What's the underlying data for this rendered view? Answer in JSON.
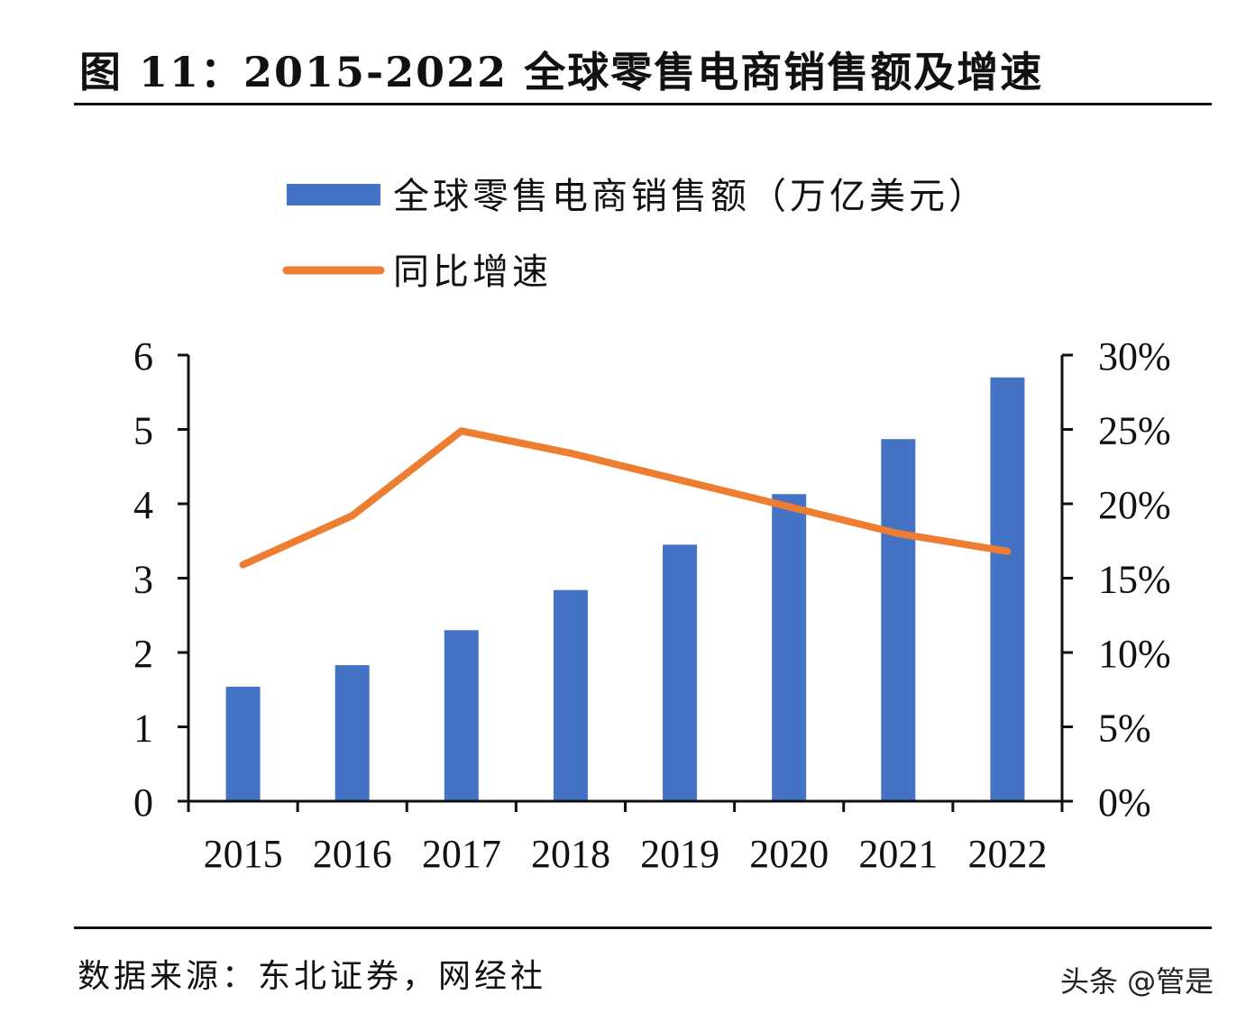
{
  "title": "图 11：2015-2022 全球零售电商销售额及增速",
  "source": "数据来源：东北证券，网经社",
  "watermark": "头条 @管是",
  "chart_data": {
    "type": "bar+line",
    "categories": [
      "2015",
      "2016",
      "2017",
      "2018",
      "2019",
      "2020",
      "2021",
      "2022"
    ],
    "series": [
      {
        "name": "全球零售电商销售额（万亿美元）",
        "type": "bar",
        "axis": "left",
        "color": "#4472C4",
        "values": [
          1.54,
          1.83,
          2.3,
          2.84,
          3.45,
          4.13,
          4.87,
          5.7
        ]
      },
      {
        "name": "同比增速",
        "type": "line",
        "axis": "right",
        "color": "#ED7D31",
        "values": [
          15.9,
          19.2,
          24.9,
          23.4,
          21.6,
          19.8,
          18.0,
          16.8
        ]
      }
    ],
    "left_axis": {
      "ylim": [
        0,
        6
      ],
      "ticks": [
        "0",
        "1",
        "2",
        "3",
        "4",
        "5",
        "6"
      ]
    },
    "right_axis": {
      "ylim": [
        0,
        30
      ],
      "ticks": [
        "0%",
        "5%",
        "10%",
        "15%",
        "20%",
        "25%",
        "30%"
      ]
    },
    "grid": false,
    "legend_position": "top"
  }
}
